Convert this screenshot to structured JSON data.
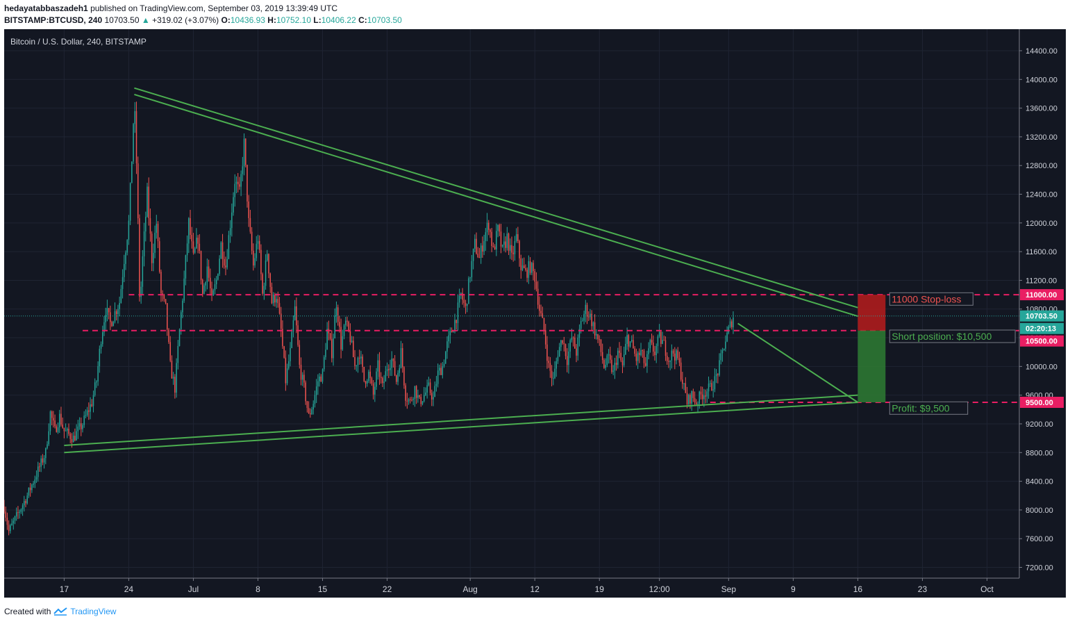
{
  "header": {
    "author": "hedayatabbaszadeh1",
    "published": "published on TradingView.com, September 03, 2019 13:39:49 UTC",
    "symbol": "BITSTAMP:BTCUSD, 240",
    "last": "10703.50",
    "change_arrow": "▲",
    "change": "+319.02 (+3.07%)",
    "o_label": "O:",
    "o": "10436.93",
    "h_label": "H:",
    "h": "10752.10",
    "l_label": "L:",
    "l": "10406.22",
    "c_label": "C:",
    "c": "10703.50"
  },
  "footer": {
    "created_with": "Created with",
    "brand": "TradingView"
  },
  "colors": {
    "background": "#131722",
    "bull": "#26a69a",
    "bear": "#ef5350",
    "trendline": "#4caf50",
    "level": "#e91e63",
    "stop_zone": "#b71c1c",
    "profit_zone": "#2e7d32"
  },
  "chart_data": {
    "type": "candlestick",
    "title": "Bitcoin / U.S. Dollar, 240, BITSTAMP",
    "ylim": [
      7050,
      14700
    ],
    "y_ticks": [
      "14400.00",
      "14000.00",
      "13600.00",
      "13200.00",
      "12800.00",
      "12400.00",
      "12000.00",
      "11600.00",
      "11200.00",
      "10800.00",
      "10400.00",
      "10000.00",
      "9600.00",
      "9200.00",
      "8800.00",
      "8400.00",
      "8000.00",
      "7600.00",
      "7200.00"
    ],
    "x_ticks": [
      "17",
      "24",
      "Jul",
      "8",
      "15",
      "22",
      "Aug",
      "12",
      "19",
      "12:00",
      "Sep",
      "9",
      "16",
      "23",
      "Oct"
    ],
    "x_tick_days": [
      2,
      9,
      16,
      23,
      30,
      37,
      46,
      53,
      60,
      66.5,
      74,
      81,
      88,
      95,
      102
    ],
    "x_range_days": [
      -4.5,
      105.5
    ],
    "price_path": [
      [
        -4.5,
        8050
      ],
      [
        -4,
        7700
      ],
      [
        -3,
        7950
      ],
      [
        -2,
        8200
      ],
      [
        -1,
        8500
      ],
      [
        0,
        8800
      ],
      [
        0.5,
        9350
      ],
      [
        1,
        9100
      ],
      [
        1.5,
        9300
      ],
      [
        2,
        9100
      ],
      [
        3,
        9000
      ],
      [
        4,
        9200
      ],
      [
        5,
        9500
      ],
      [
        5.5,
        9800
      ],
      [
        6,
        10400
      ],
      [
        6.5,
        10800
      ],
      [
        7,
        10600
      ],
      [
        8,
        10900
      ],
      [
        8.5,
        11500
      ],
      [
        9,
        12000
      ],
      [
        9.3,
        12800
      ],
      [
        9.6,
        13700
      ],
      [
        9.9,
        12600
      ],
      [
        10.2,
        10800
      ],
      [
        10.5,
        11500
      ],
      [
        11,
        12400
      ],
      [
        11.5,
        11500
      ],
      [
        12,
        12000
      ],
      [
        12.5,
        11000
      ],
      [
        13,
        10800
      ],
      [
        13.5,
        10000
      ],
      [
        14,
        9700
      ],
      [
        14.5,
        10500
      ],
      [
        15,
        11200
      ],
      [
        15.5,
        12000
      ],
      [
        16,
        11500
      ],
      [
        16.5,
        11800
      ],
      [
        17,
        11000
      ],
      [
        17.5,
        11400
      ],
      [
        18,
        10900
      ],
      [
        18.5,
        11200
      ],
      [
        19,
        11700
      ],
      [
        19.5,
        11400
      ],
      [
        20,
        12000
      ],
      [
        20.5,
        12600
      ],
      [
        21,
        12400
      ],
      [
        21.5,
        13100
      ],
      [
        22,
        12000
      ],
      [
        22.5,
        11400
      ],
      [
        23,
        11800
      ],
      [
        23.5,
        11000
      ],
      [
        24,
        11600
      ],
      [
        24.5,
        10900
      ],
      [
        25,
        11000
      ],
      [
        25.5,
        10500
      ],
      [
        26,
        9800
      ],
      [
        26.5,
        10200
      ],
      [
        27,
        10800
      ],
      [
        27.5,
        10000
      ],
      [
        28,
        9700
      ],
      [
        28.5,
        9300
      ],
      [
        29,
        9500
      ],
      [
        29.5,
        9800
      ],
      [
        30,
        9900
      ],
      [
        30.5,
        10500
      ],
      [
        31,
        10200
      ],
      [
        31.5,
        10900
      ],
      [
        32,
        10300
      ],
      [
        32.5,
        10600
      ],
      [
        33,
        10400
      ],
      [
        33.5,
        10000
      ],
      [
        34,
        10200
      ],
      [
        34.5,
        9800
      ],
      [
        35,
        9900
      ],
      [
        35.5,
        9600
      ],
      [
        36,
        10000
      ],
      [
        36.5,
        9700
      ],
      [
        37,
        10000
      ],
      [
        37.5,
        10100
      ],
      [
        38,
        9800
      ],
      [
        38.5,
        10200
      ],
      [
        39,
        9600
      ],
      [
        39.5,
        9500
      ],
      [
        40,
        9700
      ],
      [
        40.5,
        9500
      ],
      [
        41,
        9600
      ],
      [
        41.5,
        9700
      ],
      [
        42,
        9550
      ],
      [
        42.5,
        9900
      ],
      [
        43,
        10000
      ],
      [
        43.5,
        10300
      ],
      [
        44,
        10500
      ],
      [
        44.5,
        10700
      ],
      [
        45,
        11000
      ],
      [
        45.5,
        10800
      ],
      [
        46,
        11300
      ],
      [
        46.5,
        11700
      ],
      [
        47,
        11500
      ],
      [
        47.5,
        11800
      ],
      [
        48,
        12000
      ],
      [
        48.5,
        11600
      ],
      [
        49,
        11900
      ],
      [
        49.5,
        11600
      ],
      [
        50,
        11800
      ],
      [
        50.5,
        11500
      ],
      [
        51,
        11800
      ],
      [
        51.5,
        11400
      ],
      [
        52,
        11300
      ],
      [
        52.5,
        11400
      ],
      [
        53,
        11250
      ],
      [
        53.5,
        10800
      ],
      [
        54,
        10500
      ],
      [
        54.5,
        10000
      ],
      [
        55,
        9800
      ],
      [
        55.5,
        10200
      ],
      [
        56,
        10400
      ],
      [
        56.5,
        10100
      ],
      [
        57,
        10400
      ],
      [
        57.5,
        10200
      ],
      [
        58,
        10600
      ],
      [
        58.5,
        10800
      ],
      [
        59,
        10700
      ],
      [
        59.5,
        10500
      ],
      [
        60,
        10300
      ],
      [
        60.5,
        10000
      ],
      [
        61,
        10100
      ],
      [
        61.5,
        9900
      ],
      [
        62,
        10200
      ],
      [
        62.5,
        10000
      ],
      [
        63,
        10400
      ],
      [
        63.5,
        10300
      ],
      [
        64,
        10100
      ],
      [
        64.5,
        10200
      ],
      [
        65,
        10000
      ],
      [
        65.5,
        10300
      ],
      [
        66,
        10200
      ],
      [
        66.5,
        10400
      ],
      [
        67,
        10300
      ],
      [
        67.5,
        10100
      ],
      [
        68,
        10200
      ],
      [
        68.5,
        10100
      ],
      [
        69,
        9800
      ],
      [
        69.5,
        9500
      ],
      [
        70,
        9600
      ],
      [
        70.5,
        9500
      ],
      [
        71,
        9600
      ],
      [
        71.5,
        9650
      ],
      [
        72,
        9700
      ],
      [
        72.5,
        9800
      ],
      [
        73,
        10000
      ],
      [
        73.5,
        10300
      ],
      [
        74,
        10500
      ],
      [
        74.5,
        10703.5
      ]
    ],
    "lines": [
      {
        "name": "upper-trendline-1",
        "p1": [
          9.6,
          13880
        ],
        "p2": [
          88,
          10820
        ]
      },
      {
        "name": "upper-trendline-2",
        "p1": [
          9.6,
          13790
        ],
        "p2": [
          88,
          10700
        ]
      },
      {
        "name": "lower-trendline-1",
        "p1": [
          2,
          8900
        ],
        "p2": [
          88,
          9600
        ]
      },
      {
        "name": "lower-trendline-2",
        "p1": [
          2,
          8800
        ],
        "p2": [
          88,
          9500
        ]
      },
      {
        "name": "projection-line",
        "p1": [
          75,
          10600
        ],
        "p2": [
          88,
          9500
        ]
      }
    ],
    "levels": [
      {
        "name": "stop-level",
        "price": 11000,
        "label": "11000.00",
        "from_day": 9
      },
      {
        "name": "entry-level",
        "price": 10500,
        "label": "10500.00",
        "from_day": 4
      },
      {
        "name": "target-level",
        "price": 9500,
        "label": "9500.00",
        "from_day": 72
      }
    ],
    "position": {
      "x_from": 88,
      "x_to": 91,
      "stop": 11000,
      "entry": 10500,
      "target": 9500
    },
    "annotations": {
      "stop": "11000 Stop-loss",
      "entry": "Short position: $10,500",
      "target": "Profit: $9,500"
    },
    "last_price_label": "10703.50",
    "countdown_label": "02:20:13"
  }
}
